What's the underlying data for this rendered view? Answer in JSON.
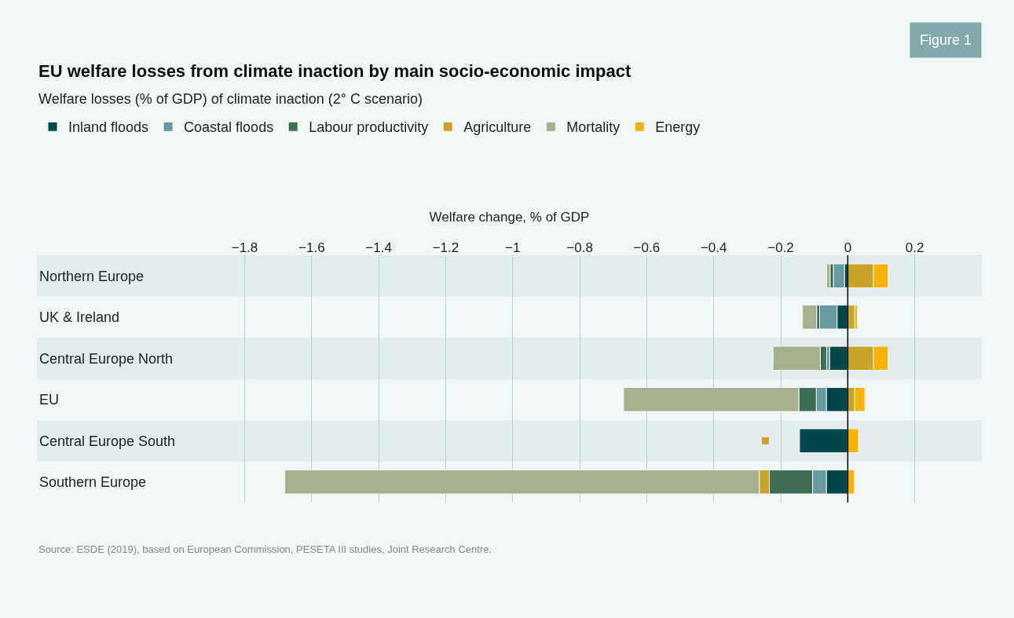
{
  "chart_data": {
    "type": "bar",
    "orientation": "horizontal",
    "stacked": true,
    "title": "EU welfare losses from climate inaction by main socio-economic impact",
    "subtitle": "Welfare losses (% of GDP) of climate inaction (2° C scenario)",
    "xlabel": "Welfare change, % of GDP",
    "categories": [
      "Northern Europe",
      "UK & Ireland",
      "Central Europe North",
      "EU",
      "Central Europe South",
      "Southern Europe"
    ],
    "series": [
      {
        "name": "Inland floods",
        "color": "#03474a",
        "values": [
          -0.01,
          -0.032,
          -0.054,
          -0.064,
          -0.144,
          -0.064
        ]
      },
      {
        "name": "Coastal floods",
        "color": "#6799a0",
        "values": [
          -0.033,
          -0.052,
          -0.009,
          -0.03,
          null,
          -0.041
        ]
      },
      {
        "name": "Labour productivity",
        "color": "#3d6e53",
        "values": [
          -0.01,
          -0.009,
          -0.019,
          -0.052,
          null,
          -0.129
        ]
      },
      {
        "name": "Agriculture",
        "color": "#c9a227",
        "values": [
          0.077,
          0.021,
          0.077,
          0.021,
          null,
          -0.03
        ]
      },
      {
        "name": "Mortality",
        "color": "#a6b08e",
        "values": [
          -0.01,
          -0.042,
          -0.141,
          -0.523,
          null,
          -1.416
        ]
      },
      {
        "name": "Energy",
        "color": "#f9b200",
        "values": [
          0.043,
          0.008,
          0.043,
          0.03,
          0.032,
          0.02
        ]
      },
      {
        "type": "scatter",
        "marker": "square",
        "color": "#c9a227",
        "values": [
          null,
          null,
          null,
          null,
          -0.246,
          null
        ]
      }
    ],
    "xlim": [
      -2.42,
      0.4
    ],
    "xticks": [
      {
        "value": -1.8,
        "label": "−1.8"
      },
      {
        "value": -1.6,
        "label": "−1.6"
      },
      {
        "value": -1.4,
        "label": "−1.4"
      },
      {
        "value": -1.2,
        "label": "−1.2"
      },
      {
        "value": -1,
        "label": "−1"
      },
      {
        "value": -0.8,
        "label": "−0.8"
      },
      {
        "value": -0.6,
        "label": "−0.6"
      },
      {
        "value": -0.4,
        "label": "−0.4"
      },
      {
        "value": -0.2,
        "label": "−0.2"
      },
      0,
      0.2
    ],
    "grid": "x",
    "legend": "top left",
    "ref_lines": [
      {
        "axis": "x",
        "value": 0,
        "color": "#000000"
      }
    ],
    "annotations": [
      "Figure 1",
      "Source: ESDE (2019), based on European Commission, PESETA III studies, Joint Research Centre."
    ]
  }
}
